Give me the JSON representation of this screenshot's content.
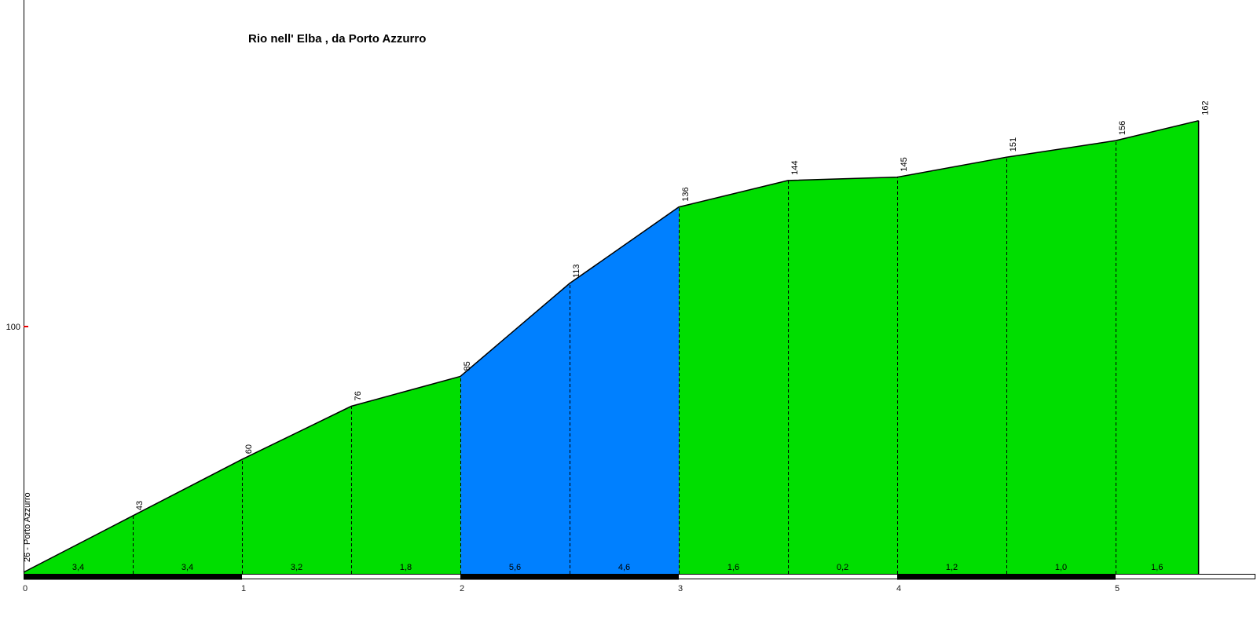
{
  "title": "Rio nell' Elba , da Porto Azzurro",
  "start_label": "26 - Porto Azzurro",
  "y_axis": {
    "tick_label": "100",
    "tick_value": 100
  },
  "colors": {
    "green": "#00DE00",
    "blue": "#0080FF",
    "tick_red": "#E80000",
    "outline": "#000000"
  },
  "chart_data": {
    "type": "area",
    "title": "Rio nell' Elba , da Porto Azzurro",
    "x_km": [
      0,
      0.5,
      1,
      1.5,
      2,
      2.5,
      3,
      3.5,
      4,
      4.5,
      5,
      5.38
    ],
    "elevations_m": [
      26,
      43,
      60,
      76,
      85,
      113,
      136,
      144,
      145,
      151,
      156,
      162
    ],
    "point_labels": [
      "",
      "43",
      "60",
      "76",
      "85",
      "113",
      "136",
      "144",
      "145",
      "151",
      "156",
      "162"
    ],
    "start_point": {
      "elevation_m": 26,
      "label": "26 - Porto Azzurro"
    },
    "segments": [
      {
        "gradient_label": "3,4",
        "color": "green"
      },
      {
        "gradient_label": "3,4",
        "color": "green"
      },
      {
        "gradient_label": "3,2",
        "color": "green"
      },
      {
        "gradient_label": "1,8",
        "color": "green"
      },
      {
        "gradient_label": "5,6",
        "color": "blue"
      },
      {
        "gradient_label": "4,6",
        "color": "blue"
      },
      {
        "gradient_label": "1,6",
        "color": "green"
      },
      {
        "gradient_label": "0,2",
        "color": "green"
      },
      {
        "gradient_label": "1,2",
        "color": "green"
      },
      {
        "gradient_label": "1,0",
        "color": "green"
      },
      {
        "gradient_label": "1,6",
        "color": "green"
      }
    ],
    "x_ticks": [
      "0",
      "1",
      "2",
      "3",
      "4",
      "5"
    ],
    "y_tick": {
      "value": 100,
      "label": "100"
    },
    "legend": "none",
    "grid": "dashed vertical guides at each half km"
  }
}
